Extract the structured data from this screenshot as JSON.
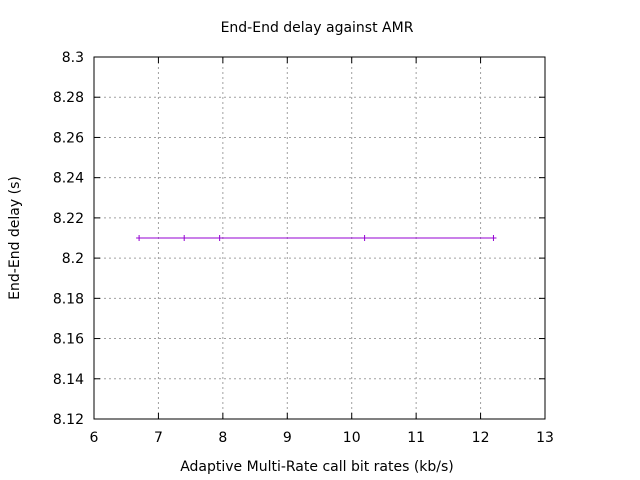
{
  "chart_data": {
    "type": "line",
    "title": "End-End delay  against AMR",
    "xlabel": "Adaptive Multi-Rate call bit rates (kb/s)",
    "ylabel": "End-End delay (s)",
    "xlim": [
      6,
      13
    ],
    "ylim": [
      8.12,
      8.3
    ],
    "x_ticks": [
      "6",
      "7",
      "8",
      "9",
      "10",
      "11",
      "12",
      "13"
    ],
    "y_ticks": [
      "8.12",
      "8.14",
      "8.16",
      "8.18",
      "8.2",
      "8.22",
      "8.24",
      "8.26",
      "8.28",
      "8.3"
    ],
    "grid": true,
    "legend": "none",
    "series": [
      {
        "color": "#9400d3",
        "points": [
          {
            "x": 6.7,
            "y": 8.21
          },
          {
            "x": 7.4,
            "y": 8.21
          },
          {
            "x": 7.95,
            "y": 8.21
          },
          {
            "x": 10.2,
            "y": 8.21
          },
          {
            "x": 12.2,
            "y": 8.21
          }
        ]
      }
    ]
  }
}
